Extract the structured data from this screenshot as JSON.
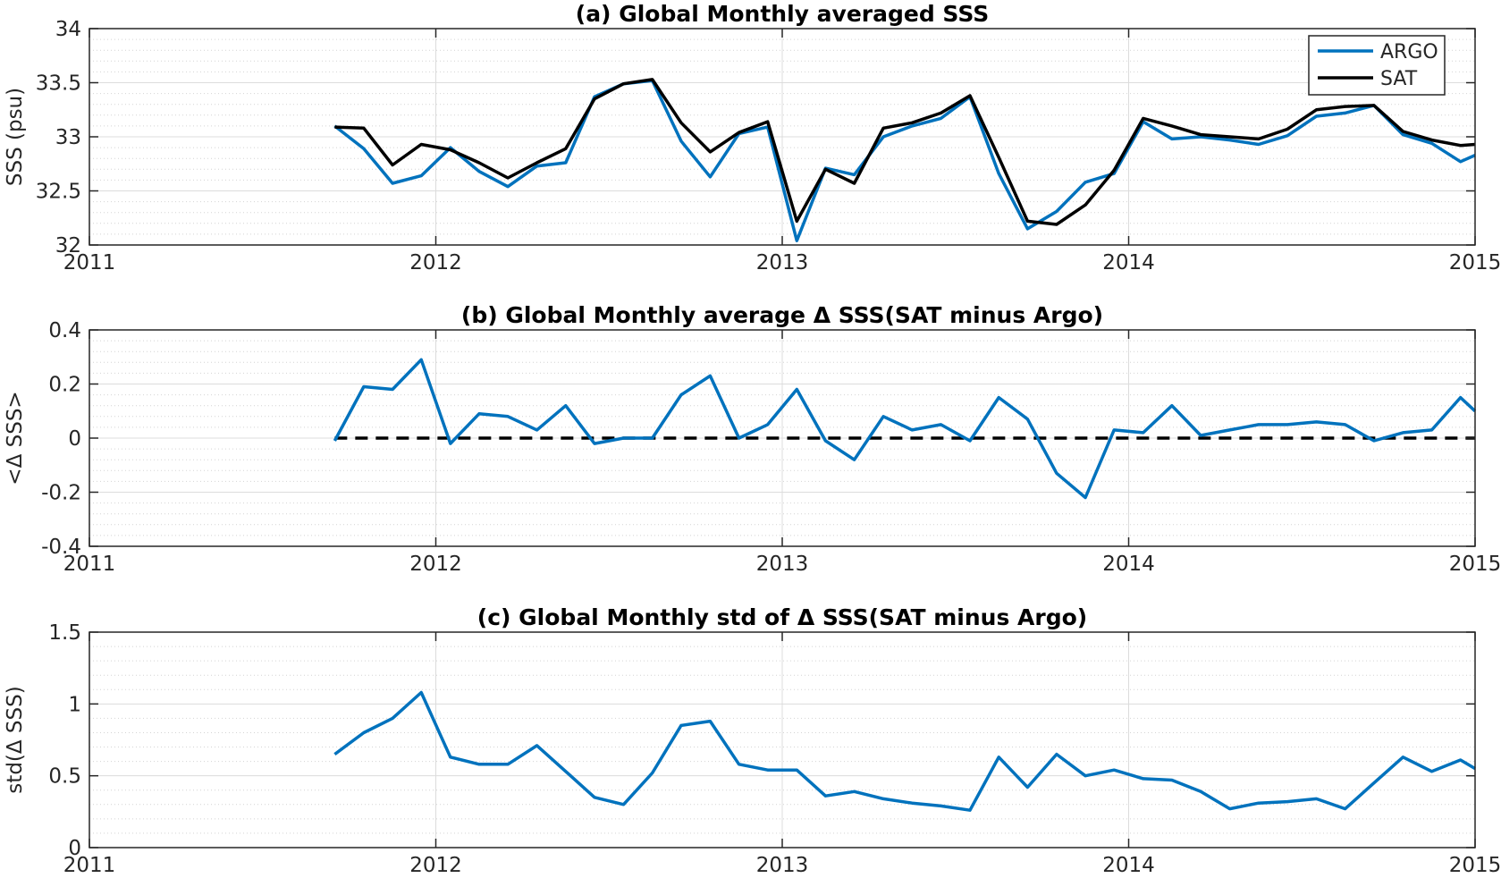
{
  "chart_data": [
    {
      "type": "line",
      "title": "(a) Global Monthly averaged SSS",
      "xlabel": "",
      "ylabel": "SSS (psu)",
      "xlim": [
        2011,
        2015
      ],
      "ylim": [
        32,
        34
      ],
      "xticks": [
        2011,
        2012,
        2013,
        2014,
        2015
      ],
      "xtick_labels": [
        "2011",
        "2012",
        "2013",
        "2014",
        "2015"
      ],
      "yticks": [
        32,
        32.5,
        33,
        33.5,
        34
      ],
      "ytick_labels": [
        "32",
        "32.5",
        "33",
        "33.5",
        "34"
      ],
      "grid": true,
      "legend": "top-right",
      "x": [
        2011.708,
        2011.792,
        2011.875,
        2011.958,
        2012.042,
        2012.125,
        2012.208,
        2012.292,
        2012.375,
        2012.458,
        2012.542,
        2012.625,
        2012.708,
        2012.792,
        2012.875,
        2012.958,
        2013.042,
        2013.125,
        2013.208,
        2013.292,
        2013.375,
        2013.458,
        2013.542,
        2013.625,
        2013.708,
        2013.792,
        2013.875,
        2013.958,
        2014.042,
        2014.125,
        2014.208,
        2014.292,
        2014.375,
        2014.458,
        2014.542,
        2014.625,
        2014.708,
        2014.792,
        2014.875,
        2014.958,
        2015.0
      ],
      "series": [
        {
          "name": "ARGO",
          "color": "#0072BD",
          "style": "solid",
          "values": [
            33.1,
            32.89,
            32.57,
            32.64,
            32.9,
            32.68,
            32.54,
            32.73,
            32.76,
            33.37,
            33.49,
            33.52,
            32.96,
            32.63,
            33.03,
            33.09,
            32.04,
            32.71,
            32.65,
            33.0,
            33.1,
            33.17,
            33.37,
            32.66,
            32.15,
            32.31,
            32.58,
            32.66,
            33.14,
            32.98,
            33.0,
            32.97,
            32.93,
            33.01,
            33.19,
            33.22,
            33.29,
            33.02,
            32.94,
            32.77,
            32.83
          ]
        },
        {
          "name": "SAT",
          "color": "#000000",
          "style": "solid",
          "values": [
            33.09,
            33.08,
            32.74,
            32.93,
            32.88,
            32.76,
            32.62,
            32.76,
            32.89,
            33.35,
            33.49,
            33.53,
            33.13,
            32.86,
            33.04,
            33.14,
            32.22,
            32.7,
            32.57,
            33.08,
            33.13,
            33.22,
            33.38,
            32.81,
            32.22,
            32.19,
            32.37,
            32.69,
            33.17,
            33.1,
            33.02,
            33.0,
            32.98,
            33.07,
            33.25,
            33.28,
            33.29,
            33.05,
            32.97,
            32.92,
            32.93
          ]
        }
      ]
    },
    {
      "type": "line",
      "title": "(b) Global Monthly average Δ SSS(SAT minus Argo)",
      "xlabel": "",
      "ylabel": "<Δ SSS>",
      "xlim": [
        2011,
        2015
      ],
      "ylim": [
        -0.4,
        0.4
      ],
      "xticks": [
        2011,
        2012,
        2013,
        2014,
        2015
      ],
      "xtick_labels": [
        "2011",
        "2012",
        "2013",
        "2014",
        "2015"
      ],
      "yticks": [
        -0.4,
        -0.2,
        0,
        0.2,
        0.4
      ],
      "ytick_labels": [
        "-0.4",
        "-0.2",
        "0",
        "0.2",
        "0.4"
      ],
      "grid": true,
      "reference_line": {
        "y": 0,
        "color": "#000000",
        "style": "dashed"
      },
      "x": [
        2011.708,
        2011.792,
        2011.875,
        2011.958,
        2012.042,
        2012.125,
        2012.208,
        2012.292,
        2012.375,
        2012.458,
        2012.542,
        2012.625,
        2012.708,
        2012.792,
        2012.875,
        2012.958,
        2013.042,
        2013.125,
        2013.208,
        2013.292,
        2013.375,
        2013.458,
        2013.542,
        2013.625,
        2013.708,
        2013.792,
        2013.875,
        2013.958,
        2014.042,
        2014.125,
        2014.208,
        2014.292,
        2014.375,
        2014.458,
        2014.542,
        2014.625,
        2014.708,
        2014.792,
        2014.875,
        2014.958,
        2015.0
      ],
      "series": [
        {
          "color": "#0072BD",
          "style": "solid",
          "values": [
            -0.01,
            0.19,
            0.18,
            0.29,
            -0.02,
            0.09,
            0.08,
            0.03,
            0.12,
            -0.02,
            0.0,
            0.0,
            0.16,
            0.23,
            0.0,
            0.05,
            0.18,
            -0.01,
            -0.08,
            0.08,
            0.03,
            0.05,
            -0.01,
            0.15,
            0.07,
            -0.13,
            -0.22,
            0.03,
            0.02,
            0.12,
            0.01,
            0.03,
            0.05,
            0.05,
            0.06,
            0.05,
            -0.01,
            0.02,
            0.03,
            0.15,
            0.1
          ]
        }
      ]
    },
    {
      "type": "line",
      "title": "(c) Global Monthly std of Δ SSS(SAT minus Argo)",
      "xlabel": "",
      "ylabel": "std(Δ SSS)",
      "xlim": [
        2011,
        2015
      ],
      "ylim": [
        0,
        1.5
      ],
      "xticks": [
        2011,
        2012,
        2013,
        2014,
        2015
      ],
      "xtick_labels": [
        "2011",
        "2012",
        "2013",
        "2014",
        "2015"
      ],
      "yticks": [
        0,
        0.5,
        1,
        1.5
      ],
      "ytick_labels": [
        "0",
        "0.5",
        "1",
        "1.5"
      ],
      "grid": true,
      "x": [
        2011.708,
        2011.792,
        2011.875,
        2011.958,
        2012.042,
        2012.125,
        2012.208,
        2012.292,
        2012.375,
        2012.458,
        2012.542,
        2012.625,
        2012.708,
        2012.792,
        2012.875,
        2012.958,
        2013.042,
        2013.125,
        2013.208,
        2013.292,
        2013.375,
        2013.458,
        2013.542,
        2013.625,
        2013.708,
        2013.792,
        2013.875,
        2013.958,
        2014.042,
        2014.125,
        2014.208,
        2014.292,
        2014.375,
        2014.458,
        2014.542,
        2014.625,
        2014.708,
        2014.792,
        2014.875,
        2014.958,
        2015.0
      ],
      "series": [
        {
          "color": "#0072BD",
          "style": "solid",
          "values": [
            0.65,
            0.8,
            0.9,
            1.08,
            0.63,
            0.58,
            0.58,
            0.71,
            0.53,
            0.35,
            0.3,
            0.52,
            0.85,
            0.88,
            0.58,
            0.54,
            0.54,
            0.36,
            0.39,
            0.34,
            0.31,
            0.29,
            0.26,
            0.63,
            0.42,
            0.65,
            0.5,
            0.54,
            0.48,
            0.47,
            0.39,
            0.27,
            0.31,
            0.32,
            0.34,
            0.27,
            0.45,
            0.63,
            0.53,
            0.61,
            0.55
          ]
        }
      ]
    }
  ]
}
